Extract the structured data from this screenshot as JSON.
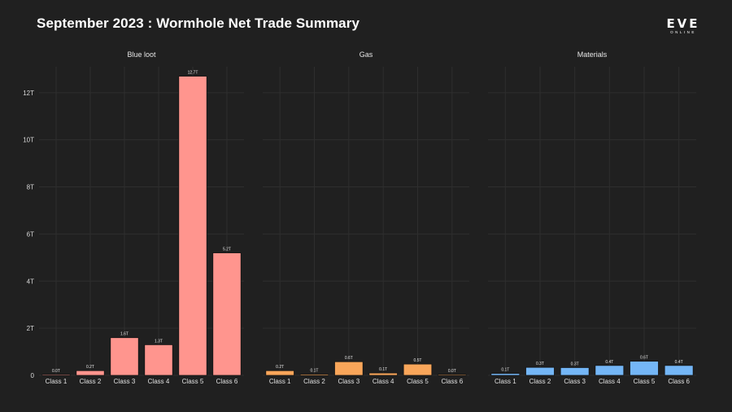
{
  "header": {
    "title": "September 2023 : Wormhole Net Trade Summary",
    "logo_main": "EVE",
    "logo_sub": "ONLINE"
  },
  "chart_data": [
    {
      "type": "bar",
      "title": "Blue loot",
      "categories": [
        "Class 1",
        "Class 2",
        "Class 3",
        "Class 4",
        "Class 5",
        "Class 6"
      ],
      "values": [
        0.0,
        0.2,
        1.6,
        1.3,
        12.7,
        5.2
      ],
      "value_labels": [
        "0.0T",
        "0.2T",
        "1.6T",
        "1.3T",
        "12.7T",
        "5.2T"
      ],
      "color": "#ff958e",
      "ylim": [
        0,
        13.1
      ],
      "yticks": [
        0,
        2,
        4,
        6,
        8,
        10,
        12
      ],
      "ytick_labels": [
        "0",
        "2T",
        "4T",
        "6T",
        "8T",
        "10T",
        "12T"
      ],
      "unit": "T"
    },
    {
      "type": "bar",
      "title": "Gas",
      "categories": [
        "Class 1",
        "Class 2",
        "Class 3",
        "Class 4",
        "Class 5",
        "Class 6"
      ],
      "values": [
        0.2,
        0.05,
        0.58,
        0.1,
        0.48,
        0.03
      ],
      "value_labels": [
        "0.2T",
        "0.1T",
        "0.6T",
        "0.1T",
        "0.5T",
        "0.0T"
      ],
      "color": "#f9a65a",
      "ylim": [
        0,
        13.1
      ],
      "unit": "T"
    },
    {
      "type": "bar",
      "title": "Materials",
      "categories": [
        "Class 1",
        "Class 2",
        "Class 3",
        "Class 4",
        "Class 5",
        "Class 6"
      ],
      "values": [
        0.08,
        0.34,
        0.33,
        0.42,
        0.6,
        0.42
      ],
      "value_labels": [
        "0.1T",
        "0.3T",
        "0.3T",
        "0.4T",
        "0.6T",
        "0.4T"
      ],
      "color": "#74b6f6",
      "ylim": [
        0,
        13.1
      ],
      "unit": "T"
    }
  ]
}
